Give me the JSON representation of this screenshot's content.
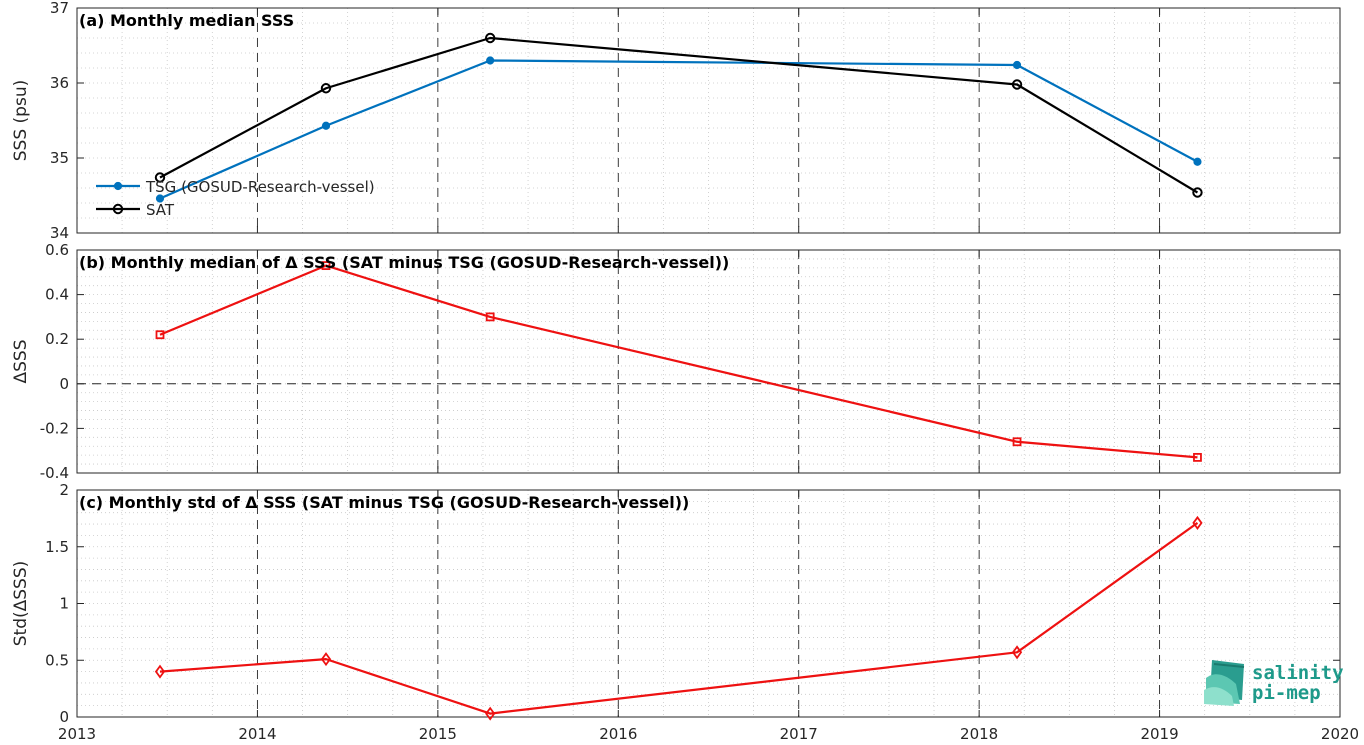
{
  "logo": {
    "line1": "salinity",
    "line2": "pi-mep",
    "color": "#1e9a8a"
  },
  "colors": {
    "tsg": "#0072BD",
    "sat": "#000000",
    "delta": "#ee1111",
    "grid": "#c8c8c8",
    "axis": "#262626"
  },
  "chart_data": [
    {
      "type": "line",
      "title": "(a) Monthly median SSS",
      "ylabel": "SSS (psu)",
      "xlim": [
        2013,
        2020
      ],
      "ylim": [
        34,
        37
      ],
      "yticks": [
        34,
        35,
        36,
        37
      ],
      "ytick_labels": [
        "34",
        "35",
        "36",
        "37"
      ],
      "grid": true,
      "legend_position": "lower-left",
      "series": [
        {
          "name": "TSG (GOSUD-Research-vessel)",
          "marker": "dot",
          "color": "#0072BD",
          "x": [
            2013.46,
            2014.38,
            2015.29,
            2018.21,
            2019.21
          ],
          "y": [
            34.46,
            35.43,
            36.3,
            36.24,
            34.95
          ]
        },
        {
          "name": "SAT",
          "marker": "circle",
          "color": "#000000",
          "x": [
            2013.46,
            2014.38,
            2015.29,
            2018.21,
            2019.21
          ],
          "y": [
            34.74,
            35.93,
            36.6,
            35.98,
            34.54
          ]
        }
      ]
    },
    {
      "type": "line",
      "title": "(b) Monthly median of Δ SSS (SAT minus TSG (GOSUD-Research-vessel))",
      "ylabel": "ΔSSS",
      "xlim": [
        2013,
        2020
      ],
      "ylim": [
        -0.4,
        0.6
      ],
      "yticks": [
        -0.4,
        -0.2,
        0,
        0.2,
        0.4,
        0.6
      ],
      "ytick_labels": [
        "-0.4",
        "-0.2",
        "0",
        "0.2",
        "0.4",
        "0.6"
      ],
      "grid": true,
      "zero_line": true,
      "series": [
        {
          "marker": "square",
          "color": "#ee1111",
          "x": [
            2013.46,
            2014.38,
            2015.29,
            2018.21,
            2019.21
          ],
          "y": [
            0.22,
            0.53,
            0.3,
            -0.26,
            -0.33
          ]
        }
      ]
    },
    {
      "type": "line",
      "title": "(c) Monthly std of Δ SSS (SAT minus TSG (GOSUD-Research-vessel))",
      "ylabel": "Std(ΔSSS)",
      "xlim": [
        2013,
        2020
      ],
      "ylim": [
        0,
        2
      ],
      "yticks": [
        0,
        0.5,
        1,
        1.5,
        2
      ],
      "ytick_labels": [
        "0",
        "0.5",
        "1",
        "1.5",
        "2"
      ],
      "xticks": [
        2013,
        2014,
        2015,
        2016,
        2017,
        2018,
        2019,
        2020
      ],
      "xtick_labels": [
        "2013",
        "2014",
        "2015",
        "2016",
        "2017",
        "2018",
        "2019",
        "2020"
      ],
      "grid": true,
      "series": [
        {
          "marker": "diamond",
          "color": "#ee1111",
          "x": [
            2013.46,
            2014.38,
            2015.29,
            2018.21,
            2019.21
          ],
          "y": [
            0.4,
            0.51,
            0.03,
            0.57,
            1.71
          ]
        }
      ]
    }
  ]
}
